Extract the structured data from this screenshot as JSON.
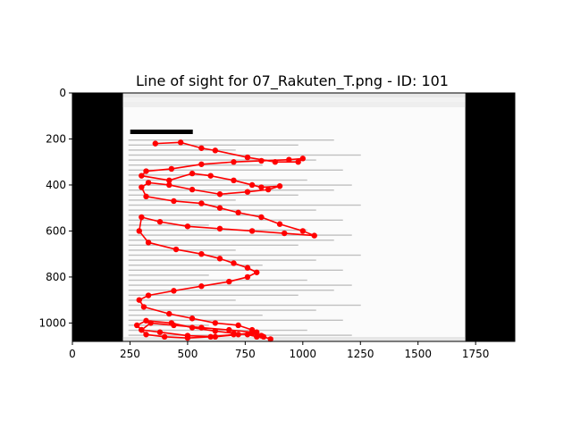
{
  "chart_data": {
    "type": "scatter",
    "title": "Line of sight for 07_Rakuten_T.png - ID: 101",
    "xlim": [
      0,
      1920
    ],
    "ylim": [
      1080,
      0
    ],
    "x_ticks": [
      0,
      250,
      500,
      750,
      1000,
      1250,
      1500,
      1750
    ],
    "y_ticks": [
      0,
      200,
      400,
      600,
      800,
      1000
    ],
    "grid": false,
    "background_image": {
      "description": "email client screenshot (Rakuten) spanning x 220 to 1705, y 0 to 1080",
      "x_range": [
        220,
        1705
      ],
      "y_range": [
        0,
        1080
      ],
      "black_bars_x": [
        [
          0,
          220
        ],
        [
          1705,
          1920
        ]
      ]
    },
    "series": [
      {
        "color": "#ff0000",
        "x": [
          360,
          470,
          560,
          620,
          760,
          880,
          980,
          1000,
          940,
          820,
          700,
          560,
          430,
          320,
          300,
          420,
          520,
          600,
          700,
          780,
          820,
          900,
          850,
          760,
          640,
          520,
          420,
          330,
          300,
          320,
          440,
          560,
          640,
          720,
          820,
          900,
          1000,
          1050,
          920,
          780,
          640,
          500,
          380,
          300,
          290,
          330,
          450,
          560,
          640,
          700,
          760,
          800,
          760,
          680,
          560,
          440,
          330,
          290,
          310,
          420,
          520,
          620,
          720,
          780,
          800,
          720,
          620,
          500,
          380,
          300,
          280,
          320,
          430,
          520,
          620,
          700,
          760,
          800,
          820,
          780,
          680,
          560,
          440,
          340,
          300,
          320,
          400,
          500,
          600,
          700,
          780,
          830,
          860
        ],
        "y": [
          220,
          215,
          240,
          250,
          280,
          300,
          300,
          285,
          290,
          295,
          300,
          310,
          330,
          340,
          360,
          380,
          350,
          360,
          380,
          400,
          410,
          405,
          420,
          430,
          440,
          420,
          400,
          390,
          410,
          450,
          470,
          480,
          500,
          520,
          540,
          570,
          600,
          620,
          610,
          600,
          590,
          580,
          560,
          540,
          600,
          650,
          680,
          700,
          720,
          740,
          760,
          780,
          800,
          820,
          840,
          860,
          880,
          900,
          930,
          960,
          980,
          1000,
          1010,
          1030,
          1040,
          1050,
          1060,
          1055,
          1040,
          1030,
          1010,
          990,
          1000,
          1020,
          1035,
          1045,
          1050,
          1060,
          1055,
          1040,
          1030,
          1020,
          1010,
          1000,
          1030,
          1050,
          1060,
          1065,
          1060,
          1050,
          1045,
          1060,
          1070
        ]
      }
    ]
  }
}
